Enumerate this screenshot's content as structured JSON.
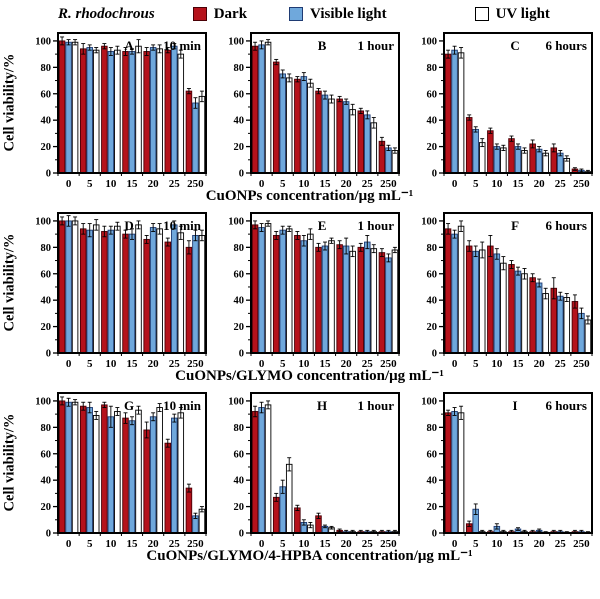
{
  "legend": {
    "species": "R. rhodochrous",
    "items": [
      {
        "label": "Dark",
        "color": "#b5121b",
        "border": "#4a0006"
      },
      {
        "label": "Visible light",
        "color": "#6fa8dc",
        "border": "#1f3b73"
      },
      {
        "label": "UV light",
        "color": "#ffffff",
        "border": "#000000"
      }
    ]
  },
  "axes": {
    "ylabel": "Cell viability/%",
    "yticks": [
      0,
      20,
      40,
      60,
      80,
      100
    ],
    "yminor": [
      10,
      30,
      50,
      70,
      90
    ],
    "ylim": [
      0,
      100
    ],
    "categories": [
      "0",
      "5",
      "10",
      "15",
      "20",
      "25",
      "250"
    ]
  },
  "rows": [
    {
      "xlabel": "CuONPs concentration/μg mL⁻¹"
    },
    {
      "xlabel": "CuONPs/GLYMO concentration/μg mL⁻¹"
    },
    {
      "xlabel": "CuONPs/GLYMO/4-HPBA concentration/μg mL⁻¹"
    }
  ],
  "chart_data": [
    {
      "type": "bar",
      "panel": "A",
      "time": "10 min",
      "series": [
        {
          "name": "Dark",
          "values": [
            100,
            94,
            96,
            92,
            92,
            93,
            62
          ],
          "err": [
            3,
            4,
            2,
            3,
            3,
            2,
            2
          ]
        },
        {
          "name": "Visible light",
          "values": [
            99,
            95,
            92,
            92,
            95,
            96,
            53
          ],
          "err": [
            2,
            2,
            3,
            2,
            2,
            2,
            4
          ]
        },
        {
          "name": "UV light",
          "values": [
            99,
            93,
            93,
            96,
            94,
            90,
            58
          ],
          "err": [
            2,
            2,
            3,
            5,
            3,
            3,
            4
          ]
        }
      ]
    },
    {
      "type": "bar",
      "panel": "B",
      "time": "1 hour",
      "series": [
        {
          "name": "Dark",
          "values": [
            96,
            84,
            71,
            62,
            56,
            47,
            24
          ],
          "err": [
            3,
            2,
            2,
            2,
            2,
            2,
            3
          ]
        },
        {
          "name": "Visible light",
          "values": [
            97,
            75,
            73,
            59,
            54,
            44,
            19
          ],
          "err": [
            3,
            3,
            3,
            3,
            2,
            3,
            2
          ]
        },
        {
          "name": "UV light",
          "values": [
            99,
            72,
            68,
            56,
            48,
            38,
            17
          ],
          "err": [
            2,
            3,
            3,
            3,
            4,
            4,
            2
          ]
        }
      ]
    },
    {
      "type": "bar",
      "panel": "C",
      "time": "6 hours",
      "series": [
        {
          "name": "Dark",
          "values": [
            90,
            42,
            32,
            26,
            22,
            19,
            3
          ],
          "err": [
            3,
            2,
            2,
            2,
            3,
            3,
            1
          ]
        },
        {
          "name": "Visible light",
          "values": [
            93,
            33,
            20,
            20,
            18,
            15,
            2
          ],
          "err": [
            3,
            2,
            2,
            2,
            2,
            2,
            1
          ]
        },
        {
          "name": "UV light",
          "values": [
            91,
            23,
            19,
            17,
            15,
            11,
            1
          ],
          "err": [
            4,
            3,
            2,
            2,
            2,
            2,
            1
          ]
        }
      ]
    },
    {
      "type": "bar",
      "panel": "D",
      "time": "10 min",
      "series": [
        {
          "name": "Dark",
          "values": [
            100,
            94,
            92,
            90,
            86,
            84,
            80
          ],
          "err": [
            3,
            4,
            4,
            3,
            3,
            3,
            5
          ]
        },
        {
          "name": "Visible light",
          "values": [
            100,
            93,
            93,
            90,
            95,
            97,
            89
          ],
          "err": [
            4,
            5,
            3,
            4,
            3,
            3,
            4
          ]
        },
        {
          "name": "UV light",
          "values": [
            100,
            97,
            96,
            97,
            94,
            91,
            89
          ],
          "err": [
            3,
            4,
            3,
            3,
            4,
            5,
            4
          ]
        }
      ]
    },
    {
      "type": "bar",
      "panel": "E",
      "time": "1 hour",
      "series": [
        {
          "name": "Dark",
          "values": [
            97,
            89,
            89,
            80,
            82,
            80,
            76
          ],
          "err": [
            3,
            3,
            3,
            3,
            3,
            3,
            3
          ]
        },
        {
          "name": "Visible light",
          "values": [
            95,
            93,
            85,
            81,
            81,
            84,
            72
          ],
          "err": [
            3,
            3,
            4,
            3,
            6,
            5,
            3
          ]
        },
        {
          "name": "UV light",
          "values": [
            98,
            94,
            90,
            85,
            77,
            79,
            78
          ],
          "err": [
            2,
            2,
            4,
            2,
            4,
            3,
            2
          ]
        }
      ]
    },
    {
      "type": "bar",
      "panel": "F",
      "time": "6 hours",
      "series": [
        {
          "name": "Dark",
          "values": [
            94,
            81,
            81,
            67,
            57,
            49,
            39
          ],
          "err": [
            4,
            4,
            8,
            3,
            3,
            8,
            5
          ]
        },
        {
          "name": "Visible light",
          "values": [
            90,
            77,
            75,
            62,
            53,
            43,
            30
          ],
          "err": [
            3,
            4,
            4,
            3,
            3,
            3,
            4
          ]
        },
        {
          "name": "UV light",
          "values": [
            96,
            78,
            68,
            60,
            45,
            42,
            25
          ],
          "err": [
            4,
            6,
            5,
            4,
            4,
            3,
            3
          ]
        }
      ]
    },
    {
      "type": "bar",
      "panel": "G",
      "time": "10 min",
      "series": [
        {
          "name": "Dark",
          "values": [
            100,
            96,
            97,
            87,
            78,
            68,
            34
          ],
          "err": [
            3,
            3,
            2,
            4,
            6,
            3,
            3
          ]
        },
        {
          "name": "Visible light",
          "values": [
            99,
            95,
            88,
            85,
            88,
            87,
            13
          ],
          "err": [
            3,
            4,
            8,
            3,
            3,
            3,
            2
          ]
        },
        {
          "name": "UV light",
          "values": [
            99,
            89,
            92,
            93,
            95,
            91,
            18
          ],
          "err": [
            2,
            3,
            3,
            3,
            3,
            4,
            2
          ]
        }
      ]
    },
    {
      "type": "bar",
      "panel": "H",
      "time": "1 hour",
      "series": [
        {
          "name": "Dark",
          "values": [
            92,
            27,
            19,
            13,
            2,
            1,
            1
          ],
          "err": [
            4,
            3,
            2,
            2,
            1,
            1,
            1
          ]
        },
        {
          "name": "Visible light",
          "values": [
            95,
            35,
            8,
            5,
            1,
            1,
            1
          ],
          "err": [
            4,
            5,
            2,
            1,
            1,
            1,
            1
          ]
        },
        {
          "name": "UV light",
          "values": [
            97,
            52,
            6,
            4,
            1,
            1,
            1
          ],
          "err": [
            3,
            5,
            2,
            1,
            1,
            1,
            1
          ]
        }
      ]
    },
    {
      "type": "bar",
      "panel": "I",
      "time": "6 hours",
      "series": [
        {
          "name": "Dark",
          "values": [
            91,
            7,
            1,
            1,
            1,
            1,
            1
          ],
          "err": [
            2,
            2,
            1,
            1,
            1,
            1,
            1
          ]
        },
        {
          "name": "Visible light",
          "values": [
            92,
            18,
            5,
            3,
            2,
            1,
            1
          ],
          "err": [
            3,
            4,
            2,
            1,
            1,
            1,
            1
          ]
        },
        {
          "name": "UV light",
          "values": [
            91,
            1,
            1,
            1,
            0.5,
            0.5,
            0.5
          ],
          "err": [
            5,
            1,
            1,
            1,
            0.5,
            0.5,
            0.5
          ]
        }
      ]
    }
  ]
}
